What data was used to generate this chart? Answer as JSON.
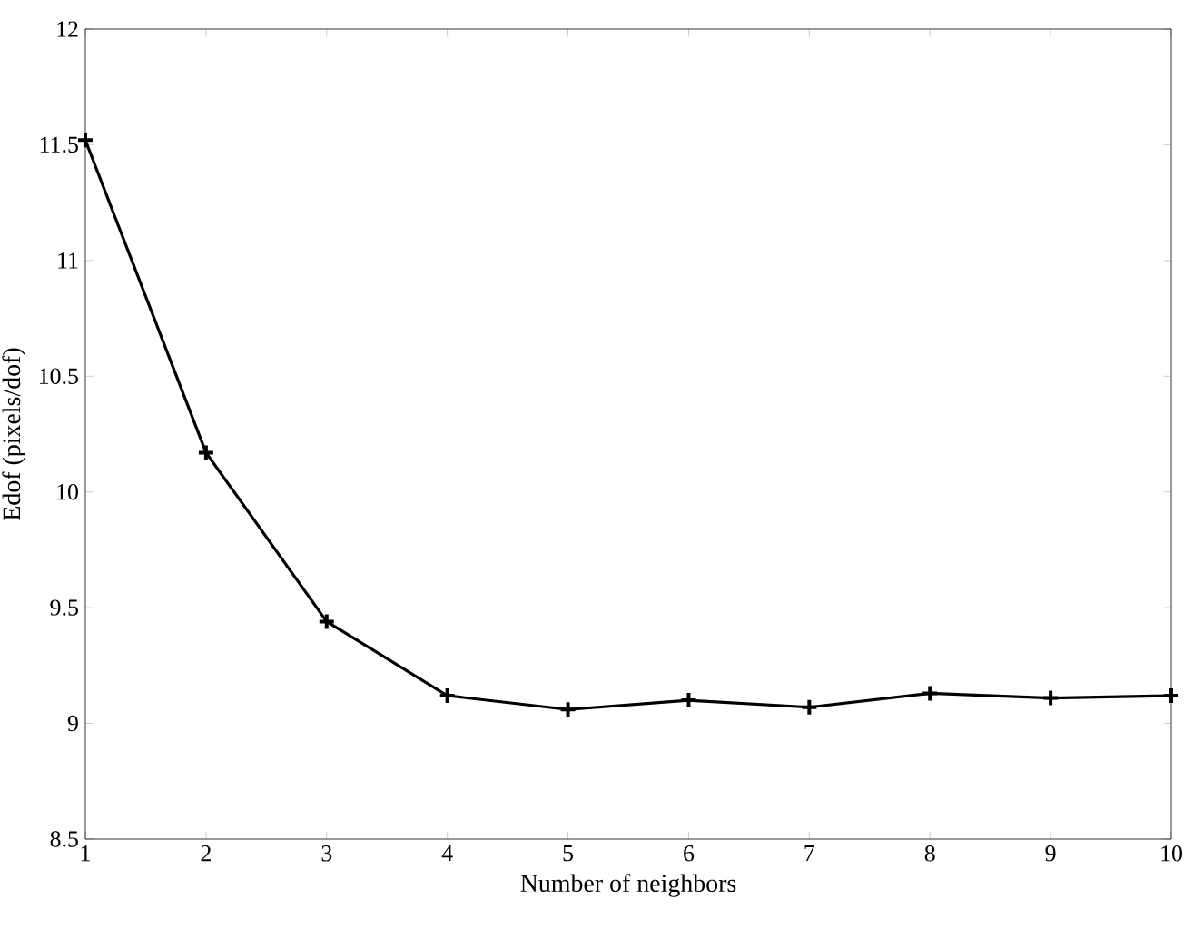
{
  "chart_data": {
    "type": "line",
    "xlabel": "Number of neighbors",
    "ylabel": "Edof (pixels/dof)",
    "x": [
      1,
      2,
      3,
      4,
      5,
      6,
      7,
      8,
      9,
      10
    ],
    "series": [
      {
        "color": "#000000",
        "values": [
          11.52,
          10.17,
          9.44,
          9.12,
          9.06,
          9.1,
          9.07,
          9.13,
          9.11,
          9.12
        ]
      }
    ],
    "xlim": [
      1,
      10
    ],
    "ylim": [
      8.5,
      12
    ],
    "xticks": [
      1,
      2,
      3,
      4,
      5,
      6,
      7,
      8,
      9,
      10
    ],
    "yticks": [
      8.5,
      9,
      9.5,
      10,
      10.5,
      11,
      11.5,
      12
    ],
    "marker": "cross",
    "line_style": "solid"
  }
}
